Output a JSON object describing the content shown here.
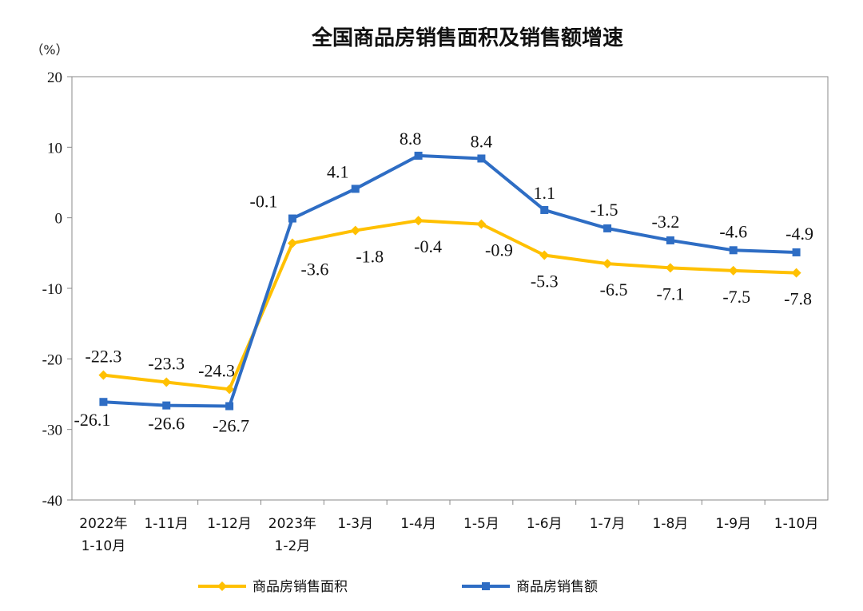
{
  "chart_data": {
    "type": "line",
    "title": "全国商品房销售面积及销售额增速",
    "unit_label": "（%）",
    "categories": [
      [
        "2022年",
        "1-10月"
      ],
      [
        "1-11月"
      ],
      [
        "1-12月"
      ],
      [
        "2023年",
        "1-2月"
      ],
      [
        "1-3月"
      ],
      [
        "1-4月"
      ],
      [
        "1-5月"
      ],
      [
        "1-6月"
      ],
      [
        "1-7月"
      ],
      [
        "1-8月"
      ],
      [
        "1-9月"
      ],
      [
        "1-10月"
      ]
    ],
    "ylim": [
      -40,
      20
    ],
    "yticks": [
      20,
      10,
      0,
      -10,
      -20,
      -30,
      -40
    ],
    "ytick_labels": [
      "20",
      "10",
      "0",
      "-10",
      "-20",
      "-30",
      "-40"
    ],
    "series": [
      {
        "name": "商品房销售面积",
        "color": "#FFC000",
        "marker": "diamond",
        "label_position": "mixed",
        "values": [
          -22.3,
          -23.3,
          -24.3,
          -3.6,
          -1.8,
          -0.4,
          -0.9,
          -5.3,
          -6.5,
          -7.1,
          -7.5,
          -7.8
        ],
        "labels": [
          "-22.3",
          "-23.3",
          "-24.3",
          "-3.6",
          "-1.8",
          "-0.4",
          "-0.9",
          "-5.3",
          "-6.5",
          "-7.1",
          "-7.5",
          "-7.8"
        ]
      },
      {
        "name": "商品房销售额",
        "color": "#2E6DC4",
        "marker": "square",
        "values": [
          -26.1,
          -26.6,
          -26.7,
          -0.1,
          4.1,
          8.8,
          8.4,
          1.1,
          -1.5,
          -3.2,
          -4.6,
          -4.9
        ],
        "labels": [
          "-26.1",
          "-26.6",
          "-26.7",
          "-0.1",
          "4.1",
          "8.8",
          "8.4",
          "1.1",
          "-1.5",
          "-3.2",
          "-4.6",
          "-4.9"
        ]
      }
    ],
    "grid": false,
    "legend": "bottom"
  }
}
